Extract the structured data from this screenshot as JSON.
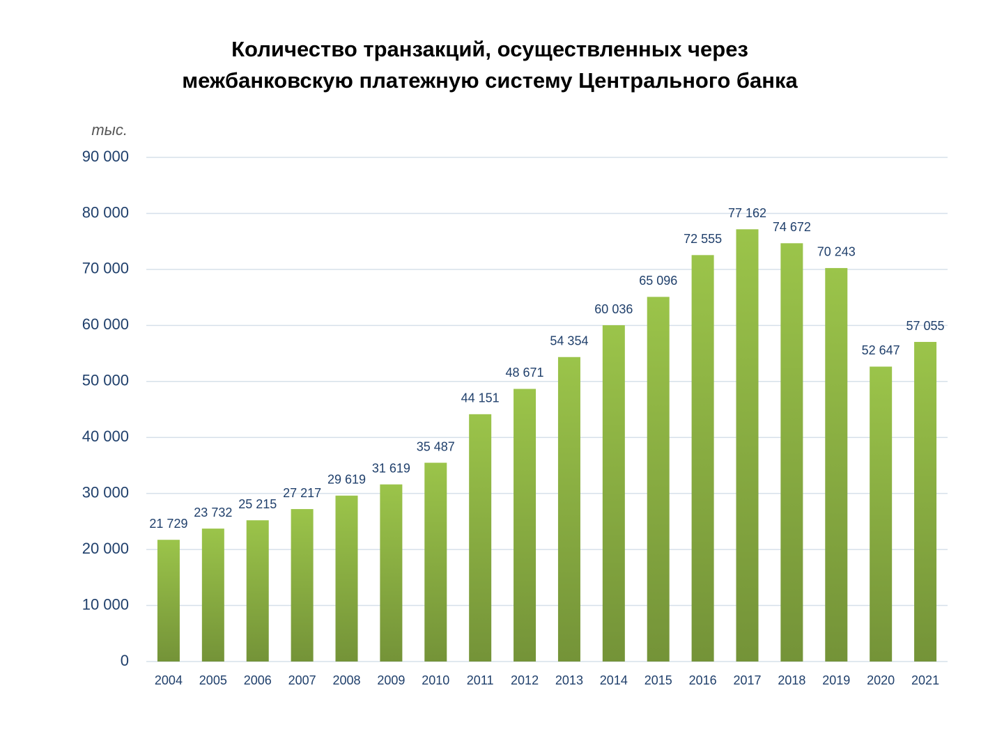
{
  "chart_data": {
    "type": "bar",
    "title": [
      "Количество транзакций, осуществленных через",
      "межбанковскую платежную систему Центрального банка"
    ],
    "y_unit": "тыс.",
    "categories": [
      "2004",
      "2005",
      "2006",
      "2007",
      "2008",
      "2009",
      "2010",
      "2011",
      "2012",
      "2013",
      "2014",
      "2015",
      "2016",
      "2017",
      "2018",
      "2019",
      "2020",
      "2021"
    ],
    "values": [
      21729,
      23732,
      25215,
      27217,
      29619,
      31619,
      35487,
      44151,
      48671,
      54354,
      60036,
      65096,
      72555,
      77162,
      74672,
      70243,
      52647,
      57055
    ],
    "value_labels": [
      "21 729",
      "23 732",
      "25 215",
      "27 217",
      "29 619",
      "31 619",
      "35 487",
      "44 151",
      "48 671",
      "54 354",
      "60 036",
      "65 096",
      "72 555",
      "77 162",
      "74 672",
      "70 243",
      "52 647",
      "57 055"
    ],
    "color": "#9bc44a",
    "ylim": [
      0,
      90000
    ],
    "yticks": [
      0,
      {
        "value": 10000,
        "label": "10 000"
      },
      {
        "value": 20000,
        "label": "20 000"
      },
      {
        "value": 30000,
        "label": "30 000"
      },
      {
        "value": 40000,
        "label": "40 000"
      },
      {
        "value": 50000,
        "label": "50 000"
      },
      {
        "value": 60000,
        "label": "60 000"
      },
      {
        "value": 70000,
        "label": "70 000"
      },
      {
        "value": 80000,
        "label": "80 000"
      },
      {
        "value": 90000,
        "label": "90 000"
      }
    ],
    "grid": true
  }
}
